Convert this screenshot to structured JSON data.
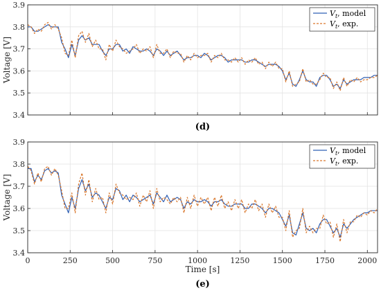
{
  "chart_data": [
    {
      "type": "line",
      "panel_label": "(d)",
      "ylabel": "Voltage [V]",
      "xlabel": "",
      "xlim": [
        0,
        2060
      ],
      "ylim": [
        3.4,
        3.9
      ],
      "xticks": [
        0,
        250,
        500,
        750,
        1000,
        1250,
        1500,
        1750,
        2000
      ],
      "xtick_labels_visible": false,
      "yticks": [
        "3.4",
        "3.5",
        "3.6",
        "3.7",
        "3.8",
        "3.9"
      ],
      "grid": true,
      "legend_position": "top-right",
      "series": [
        {
          "name": "V_t, model",
          "color": "#2f5fb3",
          "style": "solid",
          "x": [
            0,
            20,
            40,
            60,
            80,
            100,
            120,
            140,
            160,
            180,
            200,
            220,
            240,
            260,
            280,
            300,
            320,
            340,
            360,
            380,
            400,
            420,
            440,
            460,
            480,
            500,
            520,
            540,
            560,
            580,
            600,
            620,
            640,
            660,
            680,
            700,
            720,
            740,
            760,
            780,
            800,
            820,
            840,
            860,
            880,
            900,
            920,
            940,
            960,
            980,
            1000,
            1020,
            1040,
            1060,
            1080,
            1100,
            1120,
            1140,
            1160,
            1180,
            1200,
            1220,
            1240,
            1260,
            1280,
            1300,
            1320,
            1340,
            1360,
            1380,
            1400,
            1420,
            1440,
            1460,
            1480,
            1500,
            1520,
            1540,
            1560,
            1580,
            1600,
            1620,
            1640,
            1660,
            1680,
            1700,
            1720,
            1740,
            1760,
            1780,
            1800,
            1820,
            1840,
            1860,
            1880,
            1900,
            1920,
            1940,
            1960,
            1980,
            2000,
            2020,
            2040,
            2060
          ],
          "y": [
            3.8,
            3.8,
            3.78,
            3.78,
            3.79,
            3.8,
            3.81,
            3.8,
            3.8,
            3.8,
            3.73,
            3.7,
            3.66,
            3.72,
            3.67,
            3.74,
            3.76,
            3.74,
            3.75,
            3.72,
            3.72,
            3.72,
            3.69,
            3.67,
            3.7,
            3.7,
            3.72,
            3.72,
            3.69,
            3.7,
            3.68,
            3.71,
            3.7,
            3.69,
            3.69,
            3.7,
            3.69,
            3.67,
            3.7,
            3.69,
            3.67,
            3.69,
            3.67,
            3.68,
            3.69,
            3.67,
            3.65,
            3.66,
            3.66,
            3.67,
            3.67,
            3.66,
            3.68,
            3.67,
            3.65,
            3.66,
            3.67,
            3.67,
            3.66,
            3.64,
            3.65,
            3.65,
            3.65,
            3.65,
            3.64,
            3.64,
            3.65,
            3.65,
            3.64,
            3.63,
            3.62,
            3.63,
            3.63,
            3.63,
            3.62,
            3.6,
            3.56,
            3.59,
            3.54,
            3.53,
            3.56,
            3.6,
            3.56,
            3.55,
            3.55,
            3.53,
            3.57,
            3.58,
            3.58,
            3.56,
            3.53,
            3.54,
            3.52,
            3.56,
            3.54,
            3.55,
            3.56,
            3.56,
            3.56,
            3.57,
            3.57,
            3.57,
            3.58,
            3.58
          ]
        },
        {
          "name": "V_t, exp.",
          "color": "#d9762a",
          "style": "dashed",
          "x": [
            0,
            20,
            40,
            60,
            80,
            100,
            120,
            140,
            160,
            180,
            200,
            220,
            240,
            260,
            280,
            300,
            320,
            340,
            360,
            380,
            400,
            420,
            440,
            460,
            480,
            500,
            520,
            540,
            560,
            580,
            600,
            620,
            640,
            660,
            680,
            700,
            720,
            740,
            760,
            780,
            800,
            820,
            840,
            860,
            880,
            900,
            920,
            940,
            960,
            980,
            1000,
            1020,
            1040,
            1060,
            1080,
            1100,
            1120,
            1140,
            1160,
            1180,
            1200,
            1220,
            1240,
            1260,
            1280,
            1300,
            1320,
            1340,
            1360,
            1380,
            1400,
            1420,
            1440,
            1460,
            1480,
            1500,
            1520,
            1540,
            1560,
            1580,
            1600,
            1620,
            1640,
            1660,
            1680,
            1700,
            1720,
            1740,
            1760,
            1780,
            1800,
            1820,
            1840,
            1860,
            1880,
            1900,
            1920,
            1940,
            1960,
            1980,
            2000,
            2020,
            2040,
            2060
          ],
          "y": [
            3.81,
            3.8,
            3.77,
            3.79,
            3.78,
            3.81,
            3.82,
            3.79,
            3.81,
            3.79,
            3.75,
            3.68,
            3.67,
            3.74,
            3.66,
            3.76,
            3.78,
            3.73,
            3.77,
            3.71,
            3.74,
            3.7,
            3.7,
            3.65,
            3.72,
            3.69,
            3.74,
            3.71,
            3.7,
            3.68,
            3.69,
            3.7,
            3.72,
            3.68,
            3.7,
            3.69,
            3.71,
            3.66,
            3.72,
            3.68,
            3.68,
            3.7,
            3.66,
            3.69,
            3.68,
            3.68,
            3.64,
            3.67,
            3.65,
            3.68,
            3.66,
            3.67,
            3.67,
            3.68,
            3.64,
            3.67,
            3.66,
            3.68,
            3.65,
            3.65,
            3.64,
            3.66,
            3.64,
            3.66,
            3.63,
            3.65,
            3.64,
            3.66,
            3.63,
            3.64,
            3.61,
            3.64,
            3.62,
            3.64,
            3.61,
            3.61,
            3.55,
            3.6,
            3.53,
            3.54,
            3.55,
            3.61,
            3.55,
            3.56,
            3.54,
            3.54,
            3.56,
            3.59,
            3.57,
            3.57,
            3.52,
            3.55,
            3.51,
            3.57,
            3.53,
            3.56,
            3.55,
            3.57,
            3.55,
            3.56,
            3.56,
            3.57,
            3.57,
            3.58
          ]
        }
      ]
    },
    {
      "type": "line",
      "panel_label": "(e)",
      "ylabel": "Voltage [V]",
      "xlabel": "Time [s]",
      "xlim": [
        0,
        2060
      ],
      "ylim": [
        3.4,
        3.9
      ],
      "xticks": [
        "0",
        "250",
        "500",
        "750",
        "1000",
        "1250",
        "1500",
        "1750",
        "2000"
      ],
      "yticks": [
        "3.4",
        "3.5",
        "3.6",
        "3.7",
        "3.8",
        "3.9"
      ],
      "grid": true,
      "legend_position": "top-right",
      "series": [
        {
          "name": "V_t, model",
          "color": "#2f5fb3",
          "style": "solid",
          "x": [
            0,
            20,
            40,
            60,
            80,
            100,
            120,
            140,
            160,
            180,
            200,
            220,
            240,
            260,
            280,
            300,
            320,
            340,
            360,
            380,
            400,
            420,
            440,
            460,
            480,
            500,
            520,
            540,
            560,
            580,
            600,
            620,
            640,
            660,
            680,
            700,
            720,
            740,
            760,
            780,
            800,
            820,
            840,
            860,
            880,
            900,
            920,
            940,
            960,
            980,
            1000,
            1020,
            1040,
            1060,
            1080,
            1100,
            1120,
            1140,
            1160,
            1180,
            1200,
            1220,
            1240,
            1260,
            1280,
            1300,
            1320,
            1340,
            1360,
            1380,
            1400,
            1420,
            1440,
            1460,
            1480,
            1500,
            1520,
            1540,
            1560,
            1580,
            1600,
            1620,
            1640,
            1660,
            1680,
            1700,
            1720,
            1740,
            1760,
            1780,
            1800,
            1820,
            1840,
            1860,
            1880,
            1900,
            1920,
            1940,
            1960,
            1980,
            2000,
            2020,
            2040,
            2060
          ],
          "y": [
            3.78,
            3.78,
            3.72,
            3.75,
            3.73,
            3.77,
            3.78,
            3.76,
            3.77,
            3.76,
            3.66,
            3.62,
            3.58,
            3.65,
            3.6,
            3.69,
            3.73,
            3.68,
            3.71,
            3.65,
            3.67,
            3.66,
            3.63,
            3.6,
            3.65,
            3.64,
            3.69,
            3.68,
            3.64,
            3.66,
            3.63,
            3.66,
            3.65,
            3.63,
            3.64,
            3.65,
            3.66,
            3.62,
            3.67,
            3.65,
            3.63,
            3.66,
            3.63,
            3.64,
            3.65,
            3.64,
            3.6,
            3.63,
            3.62,
            3.64,
            3.63,
            3.63,
            3.64,
            3.63,
            3.61,
            3.63,
            3.63,
            3.64,
            3.62,
            3.61,
            3.61,
            3.62,
            3.62,
            3.62,
            3.6,
            3.6,
            3.62,
            3.62,
            3.61,
            3.6,
            3.58,
            3.6,
            3.6,
            3.59,
            3.58,
            3.55,
            3.52,
            3.57,
            3.49,
            3.48,
            3.53,
            3.58,
            3.51,
            3.5,
            3.51,
            3.49,
            3.53,
            3.55,
            3.55,
            3.52,
            3.49,
            3.51,
            3.47,
            3.53,
            3.51,
            3.53,
            3.55,
            3.56,
            3.57,
            3.58,
            3.58,
            3.59,
            3.59,
            3.59
          ]
        },
        {
          "name": "V_t, exp.",
          "color": "#d9762a",
          "style": "dashed",
          "x": [
            0,
            20,
            40,
            60,
            80,
            100,
            120,
            140,
            160,
            180,
            200,
            220,
            240,
            260,
            280,
            300,
            320,
            340,
            360,
            380,
            400,
            420,
            440,
            460,
            480,
            500,
            520,
            540,
            560,
            580,
            600,
            620,
            640,
            660,
            680,
            700,
            720,
            740,
            760,
            780,
            800,
            820,
            840,
            860,
            880,
            900,
            920,
            940,
            960,
            980,
            1000,
            1020,
            1040,
            1060,
            1080,
            1100,
            1120,
            1140,
            1160,
            1180,
            1200,
            1220,
            1240,
            1260,
            1280,
            1300,
            1320,
            1340,
            1360,
            1380,
            1400,
            1420,
            1440,
            1460,
            1480,
            1500,
            1520,
            1540,
            1560,
            1580,
            1600,
            1620,
            1640,
            1660,
            1680,
            1700,
            1720,
            1740,
            1760,
            1780,
            1800,
            1820,
            1840,
            1860,
            1880,
            1900,
            1920,
            1940,
            1960,
            1980,
            2000,
            2020,
            2040,
            2060
          ],
          "y": [
            3.79,
            3.77,
            3.71,
            3.76,
            3.72,
            3.78,
            3.79,
            3.75,
            3.78,
            3.75,
            3.68,
            3.6,
            3.6,
            3.67,
            3.58,
            3.71,
            3.76,
            3.66,
            3.73,
            3.63,
            3.69,
            3.64,
            3.65,
            3.58,
            3.67,
            3.62,
            3.71,
            3.67,
            3.66,
            3.64,
            3.65,
            3.64,
            3.67,
            3.61,
            3.66,
            3.63,
            3.68,
            3.6,
            3.69,
            3.63,
            3.65,
            3.64,
            3.62,
            3.65,
            3.63,
            3.65,
            3.58,
            3.65,
            3.6,
            3.66,
            3.61,
            3.65,
            3.62,
            3.65,
            3.59,
            3.65,
            3.61,
            3.66,
            3.6,
            3.63,
            3.59,
            3.64,
            3.6,
            3.64,
            3.58,
            3.62,
            3.6,
            3.64,
            3.59,
            3.62,
            3.56,
            3.62,
            3.58,
            3.61,
            3.56,
            3.56,
            3.5,
            3.59,
            3.47,
            3.5,
            3.51,
            3.6,
            3.49,
            3.52,
            3.49,
            3.51,
            3.51,
            3.57,
            3.53,
            3.54,
            3.47,
            3.53,
            3.45,
            3.55,
            3.49,
            3.54,
            3.54,
            3.57,
            3.56,
            3.58,
            3.57,
            3.59,
            3.58,
            3.6
          ]
        }
      ]
    }
  ],
  "legend": {
    "model_label": "V_t, model",
    "exp_label": "V_t, exp."
  }
}
